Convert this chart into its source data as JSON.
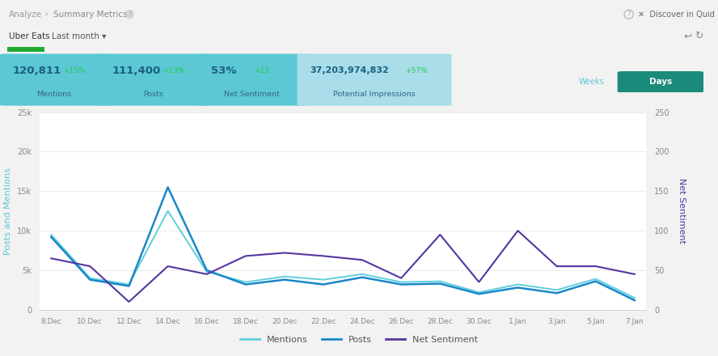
{
  "metrics": [
    {
      "value": "120,811",
      "change": "+15%",
      "label": "Mentions",
      "bg": "#5bc8d4"
    },
    {
      "value": "111,400",
      "change": "+13%",
      "label": "Posts",
      "bg": "#5bc8d4"
    },
    {
      "value": "53%",
      "change": "+23",
      "label": "Net Sentiment",
      "bg": "#5bc8d4"
    },
    {
      "value": "37,203,974,832",
      "change": "+57%",
      "label": "Potential Impressions",
      "bg": "#a8dde9"
    }
  ],
  "x_labels": [
    "8.Dec",
    "10.Dec",
    "12.Dec",
    "14.Dec",
    "16.Dec",
    "18.Dec",
    "20.Dec",
    "22.Dec",
    "24.Dec",
    "26.Dec",
    "28.Dec",
    "30.Dec",
    "1.Jan",
    "3.Jan",
    "5.Jan",
    "7.Jan"
  ],
  "mentions": [
    9500,
    4000,
    3200,
    12500,
    4800,
    3500,
    4200,
    3800,
    4500,
    3500,
    3600,
    2200,
    3200,
    2500,
    3900,
    1500
  ],
  "posts": [
    9200,
    3800,
    3000,
    15500,
    5000,
    3200,
    3800,
    3200,
    4100,
    3200,
    3300,
    2000,
    2800,
    2100,
    3600,
    1200
  ],
  "net_sentiment": [
    65,
    55,
    10,
    55,
    45,
    68,
    72,
    68,
    63,
    40,
    95,
    35,
    100,
    55,
    55,
    45
  ],
  "left_yticks": [
    0,
    5000,
    10000,
    15000,
    20000,
    25000
  ],
  "left_ylabels": [
    "0",
    "5k",
    "10k",
    "15k",
    "20k",
    "25k"
  ],
  "right_yticks": [
    0,
    50,
    100,
    150,
    200,
    250
  ],
  "right_ylabels": [
    "0",
    "50",
    "100",
    "150",
    "200",
    "250"
  ],
  "mentions_color": "#5ecfdc",
  "posts_color": "#1a87c8",
  "sentiment_color": "#5535a0",
  "grid_color": "#e8e8e8",
  "left_axis_label": "Posts and Mentions",
  "right_axis_label": "Net Sentiment",
  "days_bg": "#1a8a7a",
  "page_bg": "#f2f2f2",
  "header_bg": "#f2f2f2",
  "chart_bg": "#ffffff",
  "change_color": "#22cc44"
}
